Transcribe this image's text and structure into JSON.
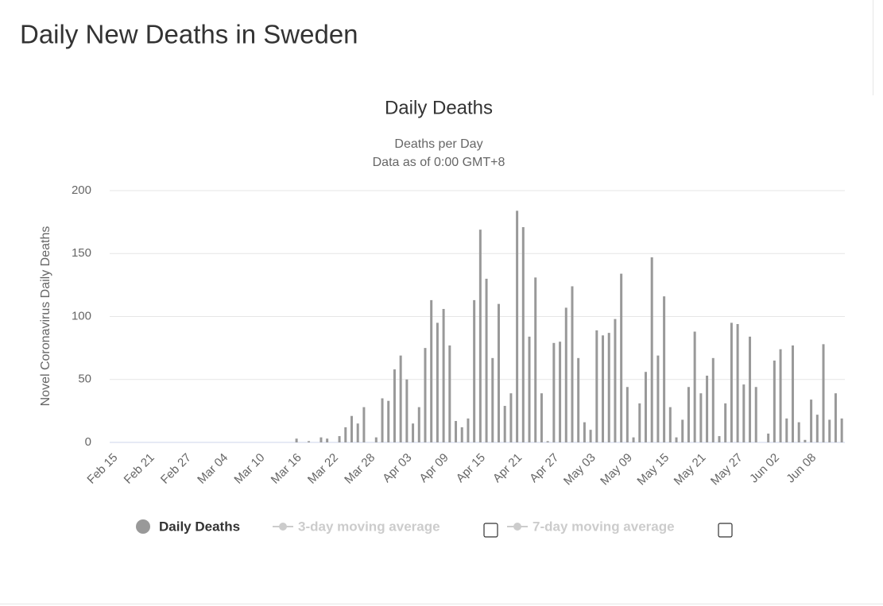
{
  "page_title": "Daily New Deaths in Sweden",
  "chart_data": {
    "type": "bar",
    "title": "Daily Deaths",
    "subtitle": [
      "Deaths per Day",
      "Data as of 0:00 GMT+8"
    ],
    "y_axis_label": "Novel Coronavirus Daily Deaths",
    "categories": [
      "Feb 15",
      null,
      null,
      null,
      null,
      null,
      "Feb 21",
      null,
      null,
      null,
      null,
      null,
      "Feb 27",
      null,
      null,
      null,
      null,
      null,
      "Mar 04",
      null,
      null,
      null,
      null,
      null,
      "Mar 10",
      null,
      null,
      null,
      null,
      null,
      "Mar 16",
      null,
      null,
      null,
      null,
      null,
      "Mar 22",
      null,
      null,
      null,
      null,
      null,
      "Mar 28",
      null,
      null,
      null,
      null,
      null,
      "Apr 03",
      null,
      null,
      null,
      null,
      null,
      "Apr 09",
      null,
      null,
      null,
      null,
      null,
      "Apr 15",
      null,
      null,
      null,
      null,
      null,
      "Apr 21",
      null,
      null,
      null,
      null,
      null,
      "Apr 27",
      null,
      null,
      null,
      null,
      null,
      "May 03",
      null,
      null,
      null,
      null,
      null,
      "May 09",
      null,
      null,
      null,
      null,
      null,
      "May 15",
      null,
      null,
      null,
      null,
      null,
      "May 21",
      null,
      null,
      null,
      null,
      null,
      "May 27",
      null,
      null,
      null,
      null,
      null,
      "Jun 02",
      null,
      null,
      null,
      null,
      null,
      "Jun 08",
      null,
      null,
      null,
      null,
      null
    ],
    "series": [
      {
        "name": "Daily Deaths",
        "color": "#999999",
        "values": [
          0,
          0,
          0,
          0,
          0,
          0,
          0,
          0,
          0,
          0,
          0,
          0,
          0,
          0,
          0,
          0,
          0,
          0,
          0,
          0,
          0,
          0,
          0,
          0,
          0,
          0,
          0,
          0,
          0,
          0,
          3,
          0,
          1,
          0,
          4,
          3,
          0,
          5,
          12,
          21,
          15,
          28,
          0,
          4,
          35,
          33,
          58,
          69,
          50,
          15,
          28,
          75,
          113,
          95,
          106,
          77,
          17,
          12,
          19,
          113,
          169,
          130,
          67,
          110,
          29,
          39,
          184,
          171,
          84,
          131,
          39,
          1,
          79,
          80,
          107,
          124,
          67,
          16,
          10,
          89,
          85,
          87,
          98,
          134,
          44,
          4,
          31,
          56,
          147,
          69,
          116,
          28,
          4,
          18,
          44,
          88,
          39,
          53,
          67,
          5,
          31,
          95,
          94,
          46,
          84,
          44,
          0,
          7,
          65,
          74,
          19,
          77,
          16,
          2,
          34,
          22,
          78,
          18,
          39,
          19
        ]
      }
    ],
    "legend_inactive": [
      "3-day moving average",
      "7-day moving average"
    ],
    "ylim": [
      0,
      200
    ],
    "yticks": [
      0,
      50,
      100,
      150,
      200
    ],
    "grid": true
  }
}
